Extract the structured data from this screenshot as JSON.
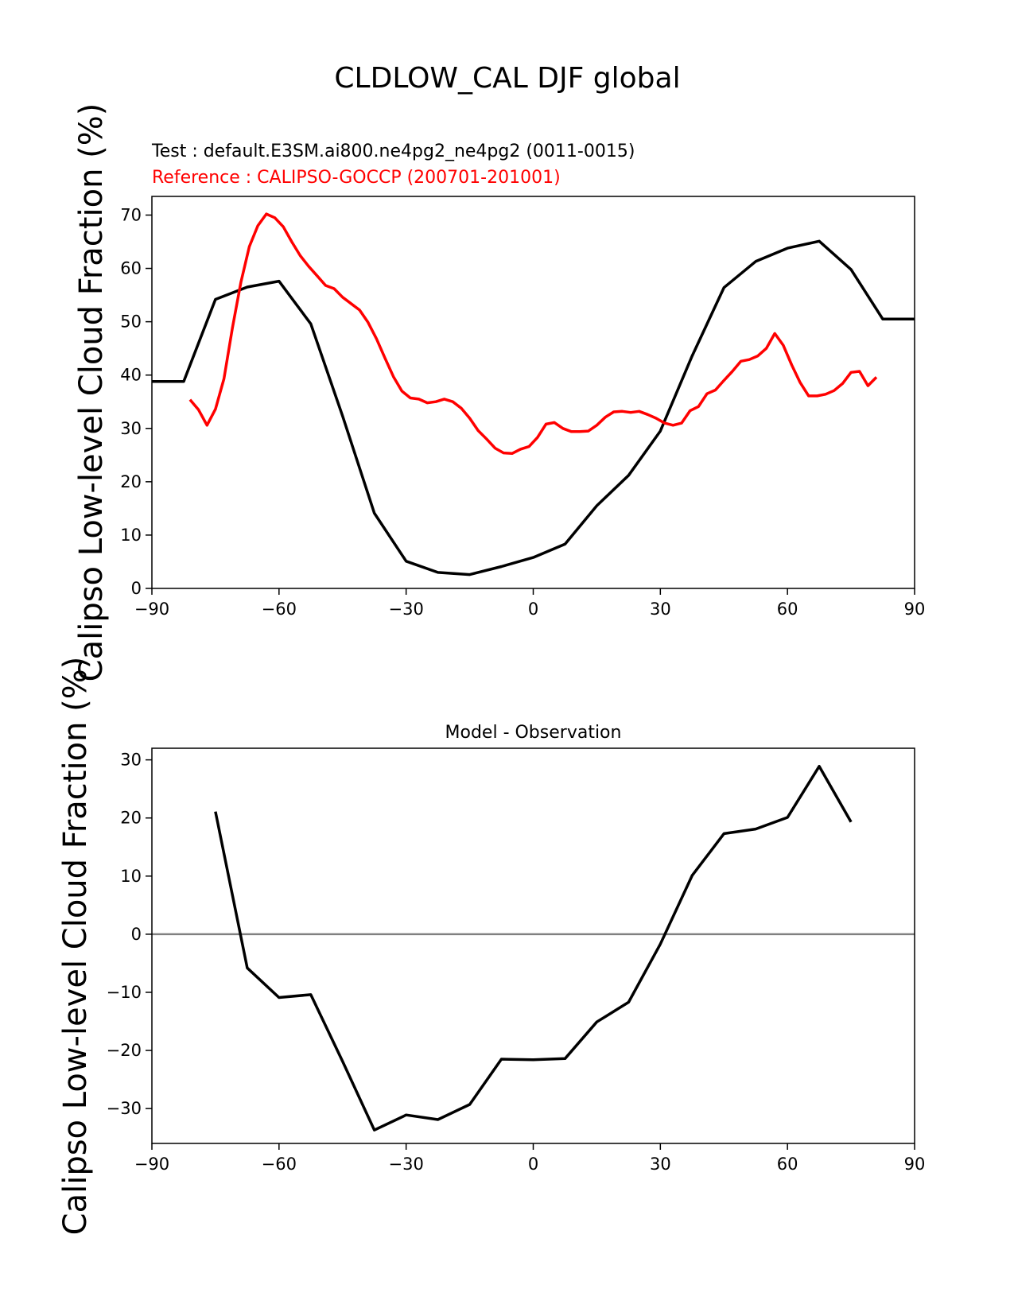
{
  "figure": {
    "title": "CLDLOW_CAL DJF global"
  },
  "chart_data": [
    {
      "type": "line",
      "test_label": "Test : default.E3SM.ai800.ne4pg2_ne4pg2 (0011-0015)",
      "reference_label": "Reference : CALIPSO-GOCCP (200701-201001)",
      "ylabel": "Calipso Low-level Cloud Fraction (%)",
      "xlim": [
        -90,
        90
      ],
      "ylim": [
        0,
        73.5
      ],
      "xticks": [
        -90,
        -60,
        -30,
        0,
        30,
        60,
        90
      ],
      "xtick_labels": [
        "−90",
        "−60",
        "−30",
        "0",
        "30",
        "60",
        "90"
      ],
      "yticks": [
        0,
        10,
        20,
        30,
        40,
        50,
        60,
        70
      ],
      "ytick_labels": [
        "0",
        "10",
        "20",
        "30",
        "40",
        "50",
        "60",
        "70"
      ],
      "grid": false,
      "series": [
        {
          "color": "#000000",
          "x": [
            -90,
            -82.5,
            -75,
            -67.5,
            -60,
            -52.5,
            -45,
            -37.5,
            -30,
            -22.5,
            -15,
            -7.5,
            0,
            7.5,
            15,
            22.5,
            30,
            37.5,
            45,
            52.5,
            60,
            67.5,
            75,
            82.5,
            90
          ],
          "y": [
            38.8,
            38.8,
            54.2,
            56.5,
            57.6,
            49.6,
            32.3,
            14.1,
            5.1,
            3.0,
            2.6,
            4.1,
            5.8,
            8.3,
            15.5,
            21.2,
            29.5,
            43.6,
            56.4,
            61.3,
            63.8,
            65.1,
            59.8,
            50.5,
            50.5
          ]
        },
        {
          "color": "#ff0000",
          "x": [
            -81,
            -79,
            -77,
            -75,
            -73,
            -71,
            -69,
            -67,
            -65,
            -63,
            -61,
            -59,
            -57,
            -55,
            -53,
            -51,
            -49,
            -47,
            -45,
            -43,
            -41,
            -39,
            -37,
            -35,
            -33,
            -31,
            -29,
            -27,
            -25,
            -23,
            -21,
            -19,
            -17,
            -15,
            -13,
            -11,
            -9,
            -7,
            -5,
            -3,
            -1,
            1,
            3,
            5,
            7,
            9,
            11,
            13,
            15,
            17,
            19,
            21,
            23,
            25,
            27,
            29,
            31,
            33,
            35,
            37,
            39,
            41,
            43,
            45,
            47,
            49,
            51,
            53,
            55,
            57,
            59,
            61,
            63,
            65,
            67,
            69,
            71,
            73,
            75,
            77,
            79,
            81
          ],
          "y": [
            35.4,
            33.5,
            30.6,
            33.6,
            39.3,
            48.8,
            57.4,
            64.1,
            68.0,
            70.2,
            69.5,
            67.8,
            65.0,
            62.4,
            60.4,
            58.6,
            56.8,
            56.2,
            54.6,
            53.4,
            52.2,
            49.9,
            46.8,
            43.2,
            39.7,
            37.0,
            35.7,
            35.5,
            34.8,
            35.0,
            35.5,
            35.0,
            33.8,
            31.9,
            29.6,
            28.0,
            26.3,
            25.4,
            25.3,
            26.1,
            26.6,
            28.3,
            30.8,
            31.1,
            30.0,
            29.4,
            29.4,
            29.5,
            30.6,
            32.1,
            33.1,
            33.2,
            33.0,
            33.2,
            32.6,
            31.9,
            31.0,
            30.6,
            31.0,
            33.3,
            34.1,
            36.5,
            37.2,
            39.0,
            40.7,
            42.6,
            42.9,
            43.6,
            45.0,
            47.8,
            45.6,
            41.9,
            38.6,
            36.1,
            36.1,
            36.4,
            37.1,
            38.4,
            40.5,
            40.7,
            38.0,
            39.6
          ]
        }
      ]
    },
    {
      "type": "line",
      "title": "Model - Observation",
      "ylabel": "Calipso Low-level Cloud Fraction (%)",
      "xlim": [
        -90,
        90
      ],
      "ylim": [
        -36,
        32
      ],
      "xticks": [
        -90,
        -60,
        -30,
        0,
        30,
        60,
        90
      ],
      "xtick_labels": [
        "−90",
        "−60",
        "−30",
        "0",
        "30",
        "60",
        "90"
      ],
      "yticks": [
        -30,
        -20,
        -10,
        0,
        10,
        20,
        30
      ],
      "ytick_labels": [
        "−30",
        "−20",
        "−10",
        "0",
        "10",
        "20",
        "30"
      ],
      "grid": false,
      "zero_line": {
        "y": 0,
        "color": "#808080"
      },
      "series": [
        {
          "color": "#000000",
          "x": [
            -75,
            -67.5,
            -60,
            -52.5,
            -45,
            -37.5,
            -30,
            -22.5,
            -15,
            -7.5,
            0,
            7.5,
            15,
            22.5,
            30,
            37.5,
            45,
            52.5,
            60,
            67.5,
            75
          ],
          "y": [
            21.1,
            -5.8,
            -10.9,
            -10.4,
            -21.9,
            -33.7,
            -31.1,
            -31.9,
            -29.3,
            -21.5,
            -21.6,
            -21.4,
            -15.1,
            -11.7,
            -1.7,
            10.1,
            17.3,
            18.1,
            20.1,
            28.9,
            19.3
          ]
        }
      ]
    }
  ]
}
